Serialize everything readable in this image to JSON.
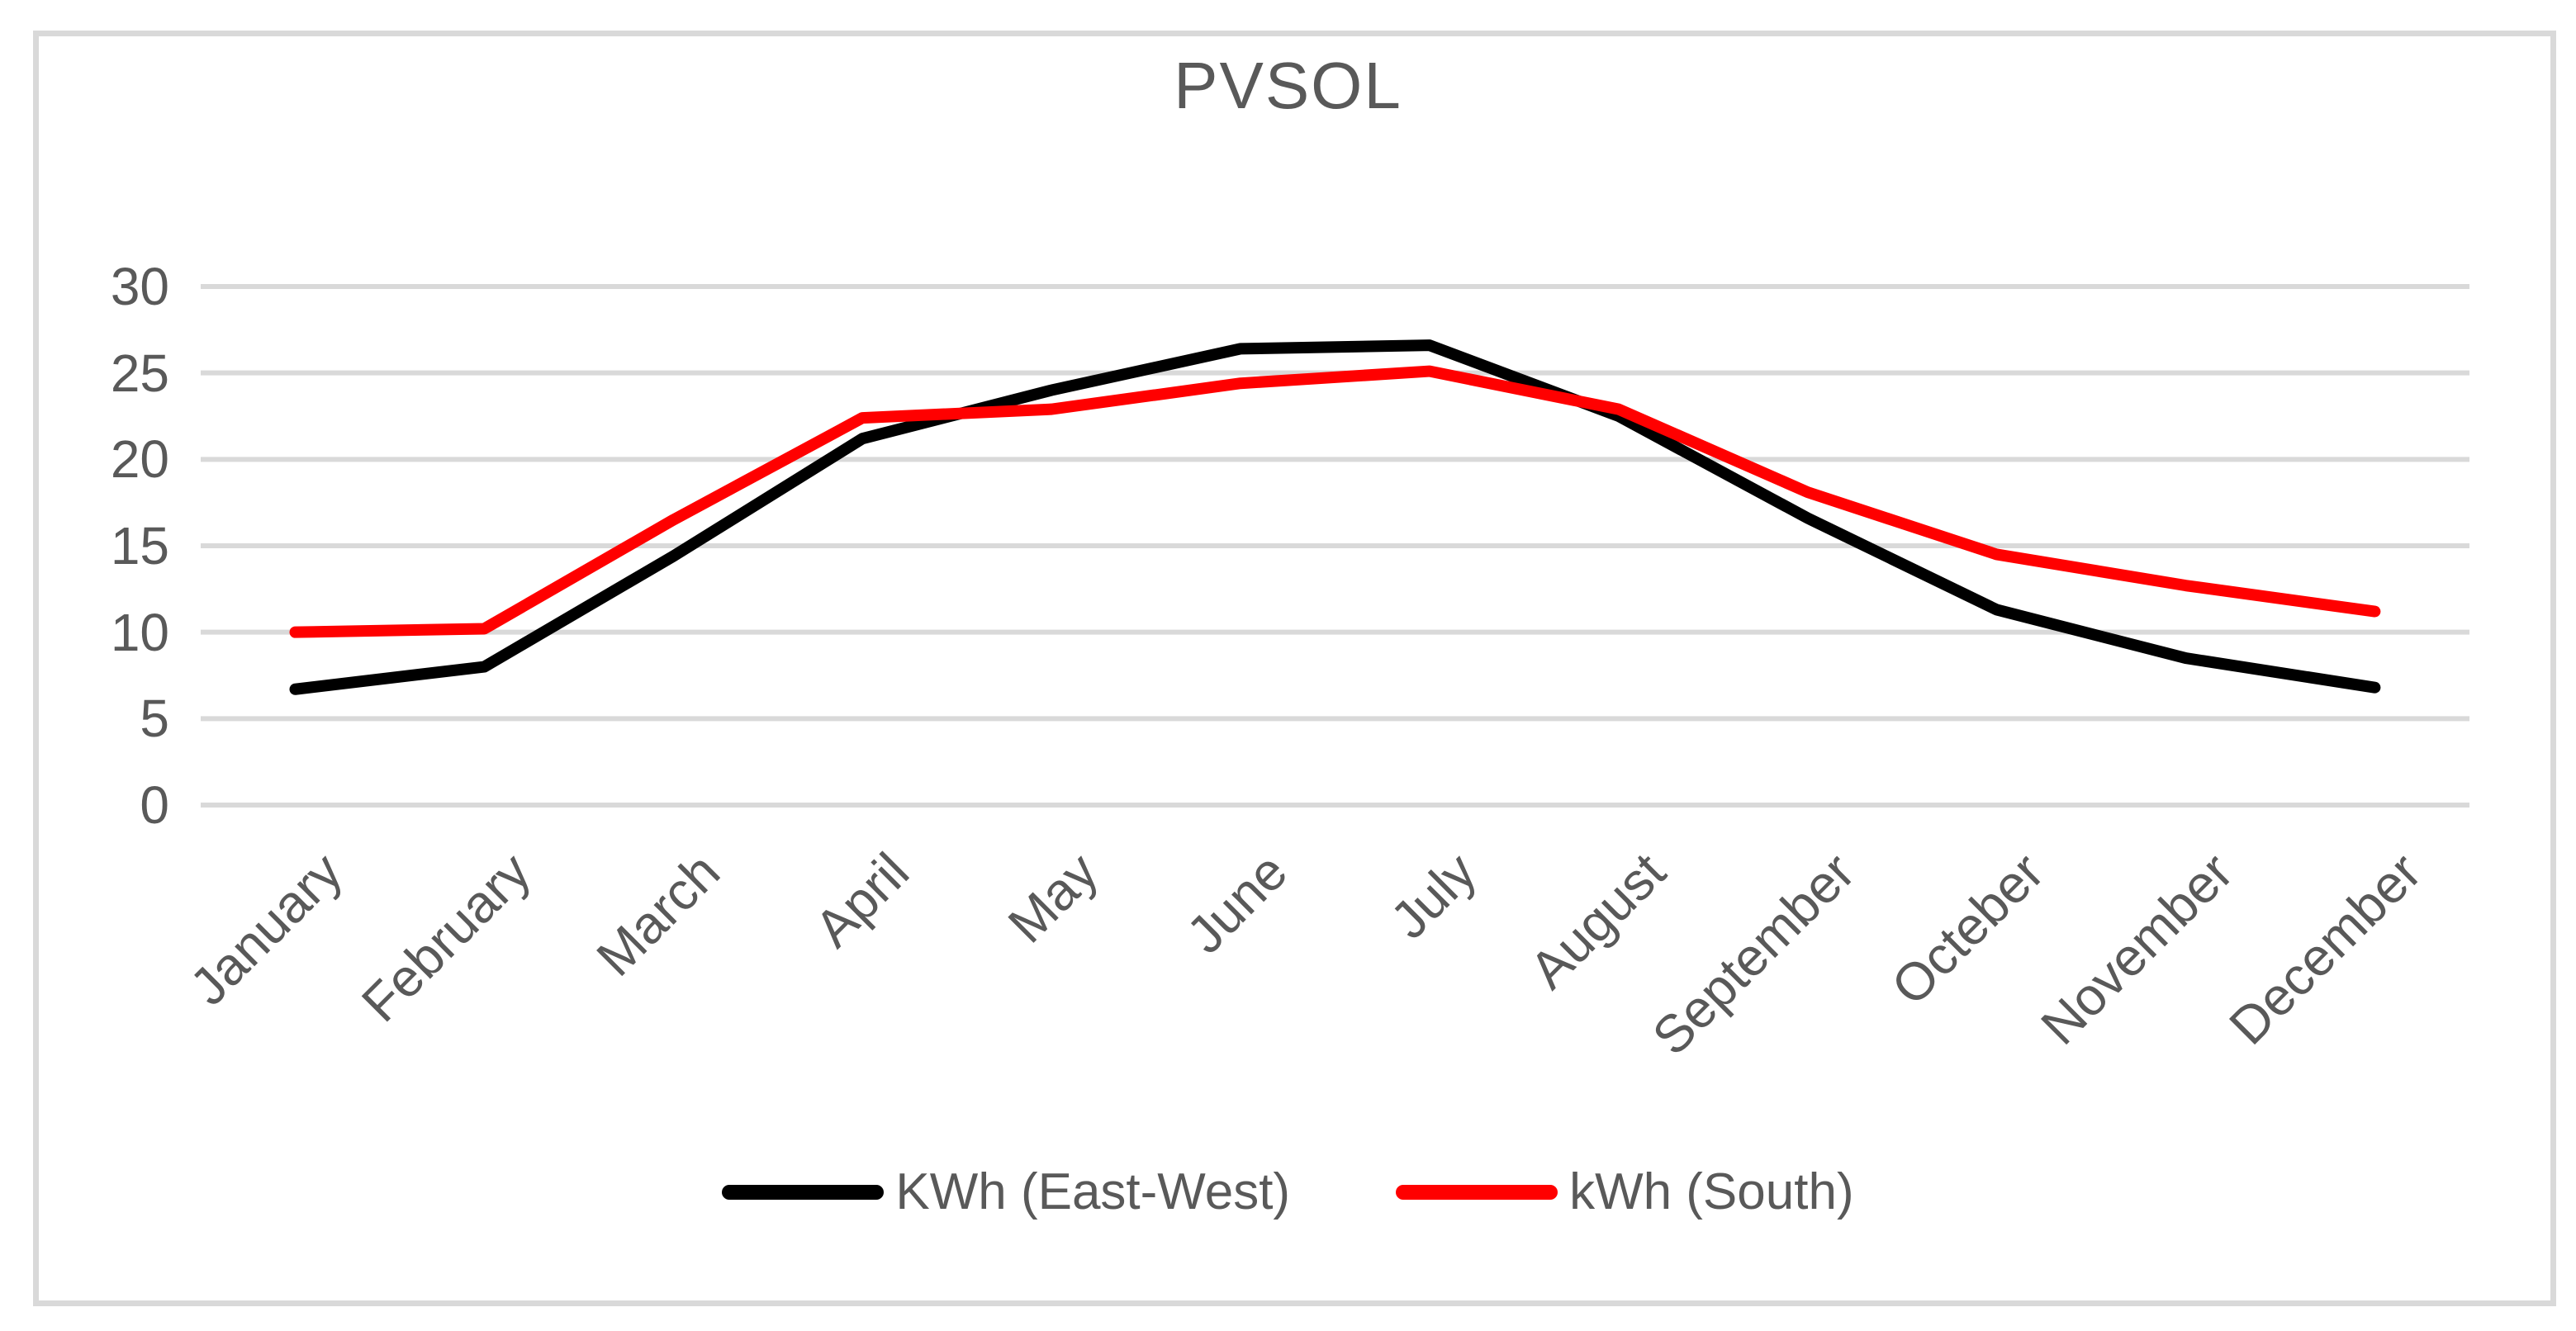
{
  "title": "PVSOL",
  "colors": {
    "text": "#595959",
    "grid": "#D9D9D9",
    "frame": "#D9D9D9",
    "background": "#FFFFFF",
    "series_east_west": "#000000",
    "series_south": "#FF0000"
  },
  "legend": {
    "items": [
      {
        "label": "KWh (East-West)",
        "color": "#000000"
      },
      {
        "label": "kWh (South)",
        "color": "#FF0000"
      }
    ]
  },
  "chart_data": {
    "type": "line",
    "title": "PVSOL",
    "categories": [
      "January",
      "February",
      "March",
      "April",
      "May",
      "June",
      "July",
      "August",
      "September",
      "Octeber",
      "November",
      "December"
    ],
    "series": [
      {
        "name": "KWh (East-West)",
        "color": "#000000",
        "values": [
          6.7,
          8.0,
          14.4,
          21.2,
          24.0,
          26.4,
          26.6,
          22.5,
          16.6,
          11.3,
          8.5,
          6.8
        ]
      },
      {
        "name": "kWh (South)",
        "color": "#FF0000",
        "values": [
          10.0,
          10.2,
          16.5,
          22.4,
          22.9,
          24.4,
          25.1,
          22.9,
          18.1,
          14.5,
          12.7,
          11.2
        ]
      }
    ],
    "xlabel": "",
    "ylabel": "",
    "ylim": [
      0,
      30
    ],
    "yticks": [
      0,
      5,
      10,
      15,
      20,
      25,
      30
    ],
    "grid": true,
    "legend_position": "bottom",
    "x_label_rotation": -45
  }
}
